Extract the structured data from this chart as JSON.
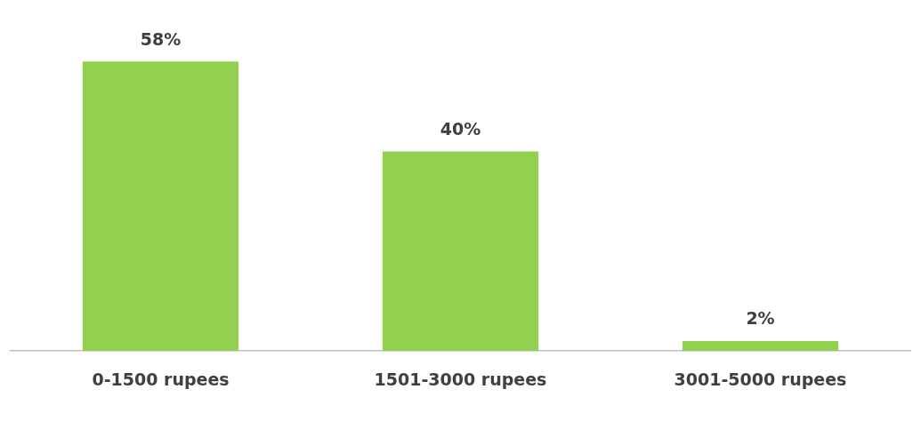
{
  "chart_data": {
    "type": "bar",
    "categories": [
      "0-1500 rupees",
      "1501-3000 rupees",
      "3001-5000 rupees"
    ],
    "values": [
      58,
      40,
      2
    ],
    "value_labels": [
      "58%",
      "40%",
      "2%"
    ],
    "color": "#92d050",
    "grid": false,
    "legend": false
  }
}
